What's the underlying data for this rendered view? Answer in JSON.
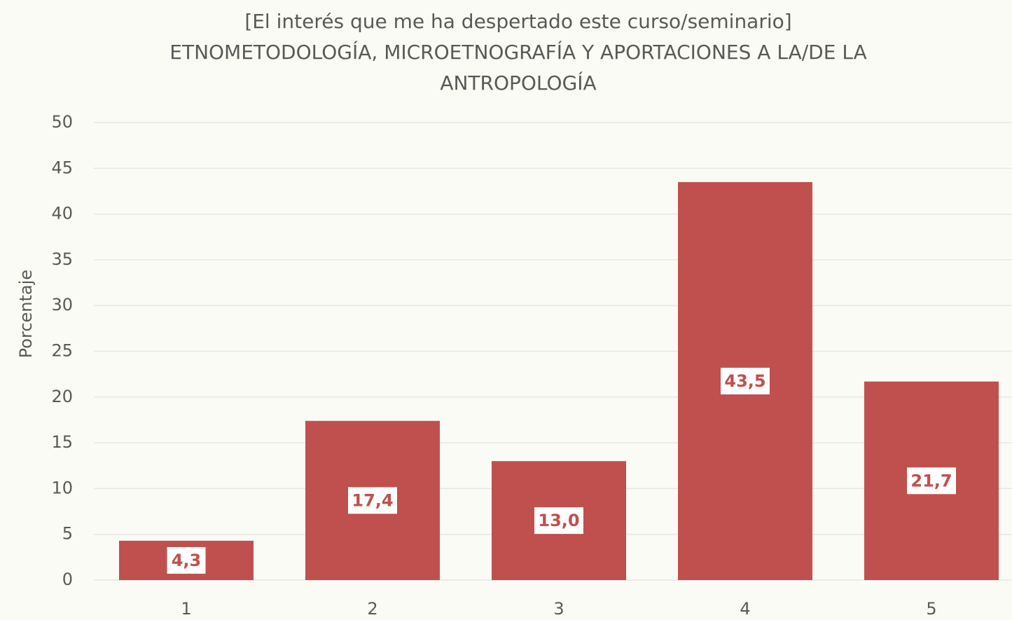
{
  "chart_data": {
    "type": "bar",
    "title": [
      "[El interés que me ha despertado este curso/seminario]",
      "ETNOMETODOLOGÍA, MICROETNOGRAFÍA Y APORTACIONES A LA/DE LA",
      "ANTROPOLOGÍA"
    ],
    "ylabel": "Porcentaje",
    "categories": [
      "1",
      "2",
      "3",
      "4",
      "5"
    ],
    "values": [
      4.3,
      17.4,
      13.0,
      43.5,
      21.7
    ],
    "value_labels": [
      "4,3",
      "17,4",
      "13,0",
      "43,5",
      "21,7"
    ],
    "color": "#c0504d",
    "ylim": [
      0,
      50
    ],
    "yticks": [
      0,
      5,
      10,
      15,
      20,
      25,
      30,
      35,
      40,
      45,
      50
    ],
    "grid": true
  }
}
